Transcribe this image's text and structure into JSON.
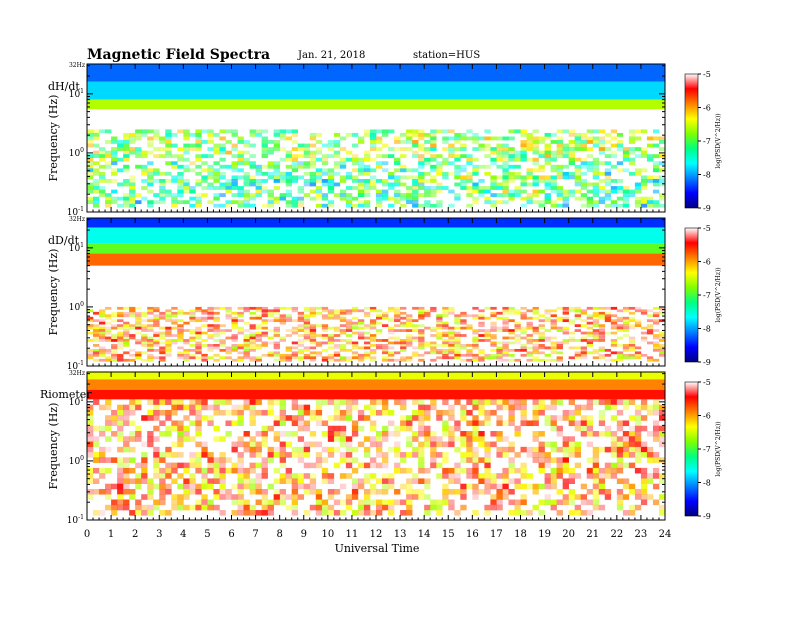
{
  "header": {
    "title": "Magnetic  Field  Spectra",
    "date": "Jan. 21, 2018",
    "station": "station=HUS"
  },
  "colormap": {
    "stops": [
      "#000080",
      "#0000ff",
      "#0080ff",
      "#00ffff",
      "#00ff80",
      "#80ff00",
      "#ffff00",
      "#ff8000",
      "#ff0000",
      "#ffffff"
    ]
  },
  "chart_data": [
    {
      "type": "heatmap",
      "panel_label": "dH/dt",
      "ylabel": "Frequency (Hz)",
      "top_label": "32Hz",
      "yticks": [
        {
          "label": "10",
          "exp": "-1",
          "value": 0.1
        },
        {
          "label": "10",
          "exp": "0",
          "value": 1
        },
        {
          "label": "10",
          "exp": "1",
          "value": 10
        }
      ],
      "ylim": [
        0.1,
        32
      ],
      "xlim": [
        0,
        24
      ],
      "colorbar": {
        "label": "log(PSD(V^2/Hz))",
        "range": [
          -9,
          -5
        ],
        "ticks": [
          "-5",
          "-6",
          "-7",
          "-8",
          "-9"
        ]
      },
      "bands": [
        {
          "f_low": 16,
          "f_high": 32,
          "level": -8.2
        },
        {
          "f_low": 8,
          "f_high": 16,
          "level": -7.8
        },
        {
          "f_low": 5.5,
          "f_high": 8,
          "level": -6.6
        },
        {
          "f_low": 0.12,
          "f_high": 2.5,
          "level": -6.0,
          "patchy": true
        }
      ]
    },
    {
      "type": "heatmap",
      "panel_label": "dD/dt",
      "ylabel": "Frequency (Hz)",
      "top_label": "32Hz",
      "yticks": [
        {
          "label": "10",
          "exp": "-1",
          "value": 0.1
        },
        {
          "label": "10",
          "exp": "0",
          "value": 1
        },
        {
          "label": "10",
          "exp": "1",
          "value": 10
        }
      ],
      "ylim": [
        0.1,
        32
      ],
      "xlim": [
        0,
        24
      ],
      "colorbar": {
        "label": "log(PSD(V^2/Hz))",
        "range": [
          -9,
          -5
        ],
        "ticks": [
          "-5",
          "-6",
          "-7",
          "-8",
          "-9"
        ]
      },
      "bands": [
        {
          "f_low": 22,
          "f_high": 32,
          "level": -8.4
        },
        {
          "f_low": 12,
          "f_high": 22,
          "level": -7.6
        },
        {
          "f_low": 8,
          "f_high": 12,
          "level": -6.9
        },
        {
          "f_low": 5,
          "f_high": 8,
          "level": -5.8
        },
        {
          "f_low": 0.12,
          "f_high": 1.0,
          "level": -5.1,
          "patchy": true
        }
      ]
    },
    {
      "type": "heatmap",
      "panel_label": "Riometer",
      "ylabel": "Frequency (Hz)",
      "top_label": "32Hz",
      "yticks": [
        {
          "label": "10",
          "exp": "-1",
          "value": 0.1
        },
        {
          "label": "10",
          "exp": "0",
          "value": 1
        },
        {
          "label": "10",
          "exp": "1",
          "value": 10
        }
      ],
      "ylim": [
        0.1,
        32
      ],
      "xlim": [
        0,
        24
      ],
      "colorbar": {
        "label": "log(PSD(V^2/Hz))",
        "range": [
          -9,
          -5
        ],
        "ticks": [
          "-5",
          "-6",
          "-7",
          "-8",
          "-9"
        ]
      },
      "bands": [
        {
          "f_low": 24,
          "f_high": 32,
          "level": -6.4
        },
        {
          "f_low": 16,
          "f_high": 24,
          "level": -5.9
        },
        {
          "f_low": 11,
          "f_high": 16,
          "level": -5.5
        },
        {
          "f_low": 0.12,
          "f_high": 11,
          "level": -5.1,
          "patchy": true
        }
      ]
    }
  ],
  "xaxis": {
    "label": "Universal Time",
    "ticks": [
      "0",
      "1",
      "2",
      "3",
      "4",
      "5",
      "6",
      "7",
      "8",
      "9",
      "10",
      "11",
      "12",
      "13",
      "14",
      "15",
      "16",
      "17",
      "18",
      "19",
      "20",
      "21",
      "22",
      "23",
      "24"
    ]
  }
}
